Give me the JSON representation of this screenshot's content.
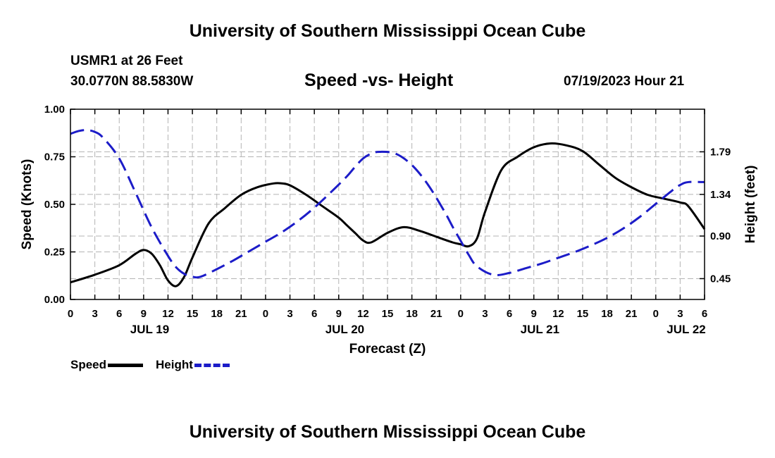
{
  "header": {
    "title": "University of Southern Mississippi Ocean Cube",
    "station": "USMR1 at 26 Feet",
    "coordinates": "30.0770N  88.5830W",
    "subtitle": "Speed -vs- Height",
    "datetime": "07/19/2023 Hour 21"
  },
  "footer": {
    "title": "University of Southern Mississippi Ocean Cube"
  },
  "colors": {
    "speed": "#000000",
    "height": "#1c1cc8",
    "grid": "#b4b4b4"
  },
  "chart_data": {
    "type": "line",
    "xlabel": "Forecast (Z)",
    "ylabel_left": "Speed (Knots)",
    "ylabel_right": "Height (feet)",
    "xlim": [
      0,
      78
    ],
    "ylim_left": [
      0,
      1.0
    ],
    "ylim_right": [
      0.23,
      2.24
    ],
    "x_tick_labels": [
      "0",
      "3",
      "6",
      "9",
      "12",
      "15",
      "18",
      "21",
      "0",
      "3",
      "6",
      "9",
      "12",
      "15",
      "18",
      "21",
      "0",
      "3",
      "6",
      "9",
      "12",
      "15",
      "18",
      "21",
      "0",
      "3",
      "6"
    ],
    "left_ticks": [
      {
        "value": 0.0,
        "label": "0.00"
      },
      {
        "value": 0.25,
        "label": "0.25"
      },
      {
        "value": 0.5,
        "label": "0.50"
      },
      {
        "value": 0.75,
        "label": "0.75"
      },
      {
        "value": 1.0,
        "label": "1.00"
      }
    ],
    "right_ticks": [
      {
        "value": 0.45,
        "label": "0.45"
      },
      {
        "value": 0.9,
        "label": "0.90"
      },
      {
        "value": 1.34,
        "label": "1.34"
      },
      {
        "value": 1.79,
        "label": "1.79"
      }
    ],
    "date_labels": [
      {
        "x": 9.75,
        "label": "JUL 19"
      },
      {
        "x": 33.75,
        "label": "JUL 20"
      },
      {
        "x": 57.75,
        "label": "JUL 21"
      },
      {
        "x": 75.75,
        "label": "JUL 22"
      }
    ],
    "grid": true,
    "legend": "bottom-left",
    "series": [
      {
        "name": "Speed",
        "axis": "left",
        "style": "solid",
        "x": [
          0,
          3,
          6,
          8,
          9,
          10,
          11,
          12,
          13,
          14,
          15,
          17,
          19,
          21,
          23,
          25,
          26,
          27,
          29,
          31,
          33,
          34,
          35,
          36,
          37,
          39,
          41,
          43,
          45,
          47,
          48,
          49,
          50,
          51,
          53,
          55,
          57,
          59,
          61,
          63,
          65,
          67,
          69,
          71,
          73,
          75,
          76,
          78
        ],
        "y": [
          0.09,
          0.13,
          0.18,
          0.24,
          0.26,
          0.24,
          0.18,
          0.1,
          0.07,
          0.12,
          0.22,
          0.4,
          0.48,
          0.55,
          0.59,
          0.61,
          0.61,
          0.6,
          0.55,
          0.49,
          0.43,
          0.39,
          0.35,
          0.31,
          0.3,
          0.35,
          0.38,
          0.36,
          0.33,
          0.3,
          0.29,
          0.28,
          0.32,
          0.46,
          0.68,
          0.75,
          0.8,
          0.82,
          0.81,
          0.78,
          0.71,
          0.64,
          0.59,
          0.55,
          0.53,
          0.51,
          0.49,
          0.37
        ]
      },
      {
        "name": "Height",
        "axis": "right",
        "style": "dashed",
        "x": [
          0,
          1,
          2,
          3,
          4,
          6,
          8,
          10,
          12,
          13,
          14,
          15,
          16,
          18,
          20,
          22,
          24,
          26,
          28,
          30,
          32,
          34,
          35,
          36,
          37,
          38,
          40,
          42,
          44,
          46,
          47,
          48,
          49,
          50,
          52,
          54,
          56,
          58,
          60,
          62,
          64,
          66,
          68,
          70,
          72,
          74,
          75,
          76,
          78
        ],
        "y": [
          1.98,
          2.01,
          2.02,
          2.0,
          1.94,
          1.72,
          1.36,
          0.99,
          0.69,
          0.57,
          0.5,
          0.47,
          0.47,
          0.55,
          0.64,
          0.74,
          0.84,
          0.94,
          1.06,
          1.2,
          1.36,
          1.53,
          1.63,
          1.72,
          1.77,
          1.79,
          1.77,
          1.65,
          1.44,
          1.16,
          1.0,
          0.85,
          0.7,
          0.58,
          0.49,
          0.51,
          0.56,
          0.61,
          0.67,
          0.73,
          0.8,
          0.88,
          0.98,
          1.1,
          1.24,
          1.38,
          1.44,
          1.47,
          1.47
        ]
      }
    ]
  }
}
